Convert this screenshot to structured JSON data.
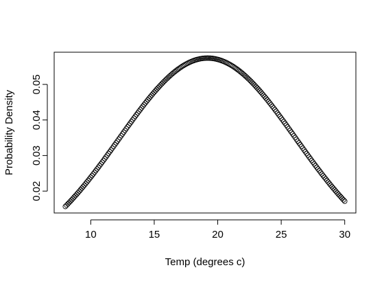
{
  "chart_data": {
    "type": "scatter",
    "title": "",
    "xlabel": "Temp (degrees c)",
    "ylabel": "Probability Density",
    "xlim": [
      7.12,
      30.88
    ],
    "ylim": [
      0.01385,
      0.05905
    ],
    "xticks": [
      10,
      15,
      20,
      25,
      30
    ],
    "xtick_labels": [
      "10",
      "15",
      "20",
      "25",
      "30"
    ],
    "yticks": [
      0.02,
      0.03,
      0.04,
      0.05
    ],
    "ytick_labels": [
      "0.02",
      "0.03",
      "0.04",
      "0.05"
    ],
    "marker": "open-circle",
    "grid": false,
    "legend": "none",
    "series": [
      {
        "x_range": [
          8,
          30
        ],
        "x_step": 0.1,
        "density": {
          "distribution": "normal",
          "mean": 19.2,
          "sd": 6.95
        }
      }
    ]
  }
}
